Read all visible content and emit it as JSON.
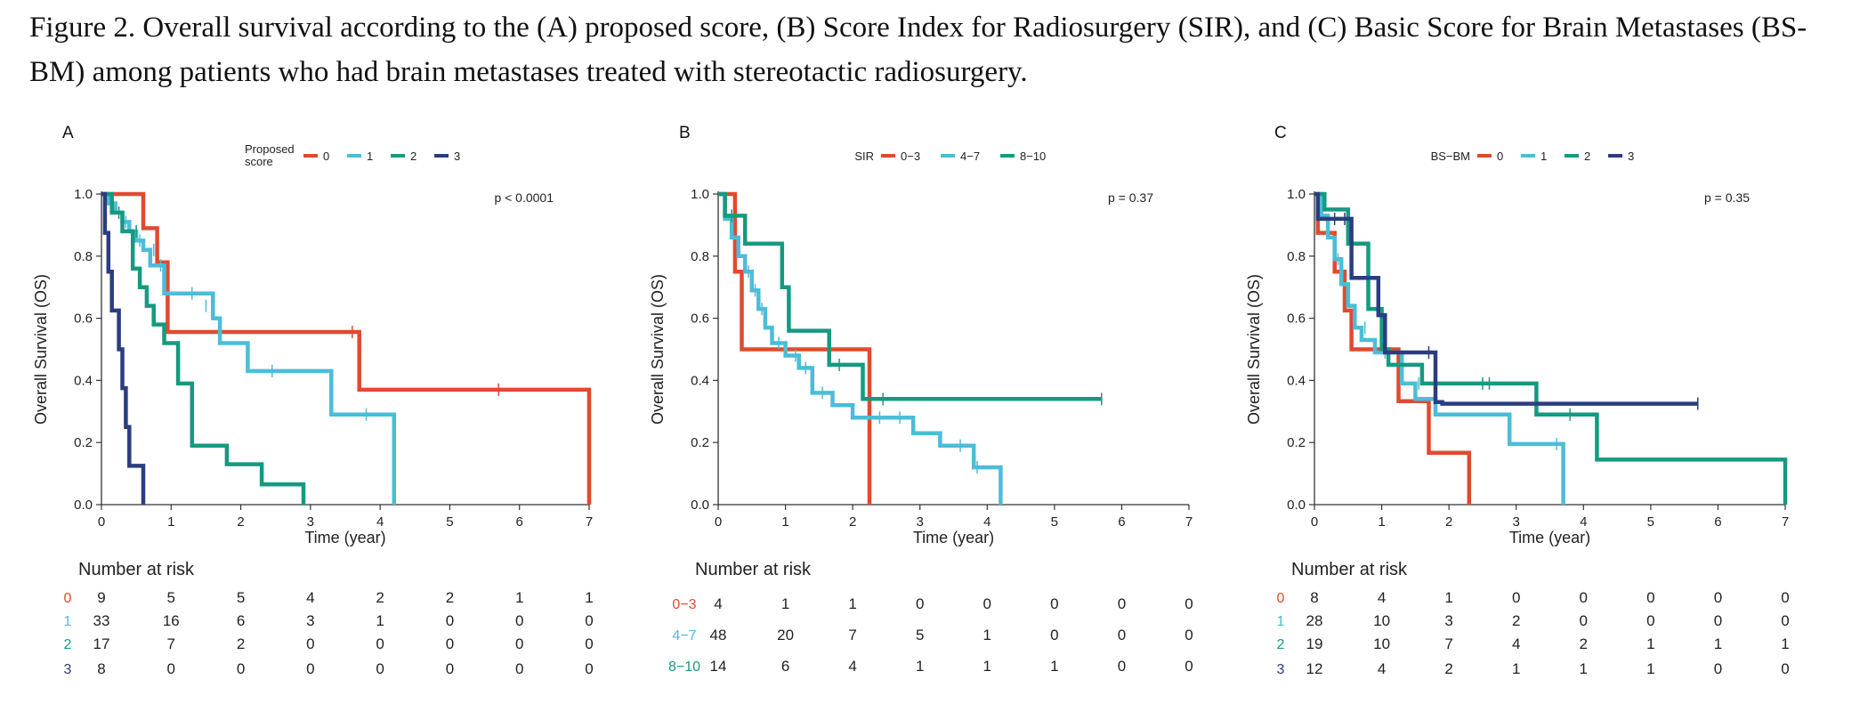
{
  "caption": "Figure 2. Overall survival according to the (A) proposed score, (B) Score Index for Radiosurgery (SIR), and (C) Basic Score for Brain Metastases (BS-BM) among patients who had brain metastases treated with stereotactic radiosurgery.",
  "chart_data": [
    {
      "type": "line",
      "panel": "A",
      "legend_title": "Proposed score",
      "p_value": "p < 0.0001",
      "xlabel": "Time (year)",
      "ylabel": "Overall Survival (OS)",
      "xlim": [
        0,
        7
      ],
      "ylim": [
        0,
        1
      ],
      "xticks": [
        "0",
        "1",
        "2",
        "3",
        "4",
        "5",
        "6",
        "7"
      ],
      "yticks": [
        "0.0",
        "0.2",
        "0.4",
        "0.6",
        "0.8",
        "1.0"
      ],
      "legend_position": "top",
      "risk_table_title": "Number at risk",
      "series": [
        {
          "name": "0",
          "color": "#e04a2f",
          "x": [
            0,
            0.6,
            0.6,
            0.8,
            0.8,
            0.95,
            0.95,
            3.7,
            3.7,
            7.0,
            7.0
          ],
          "y": [
            1.0,
            1.0,
            0.89,
            0.89,
            0.78,
            0.78,
            0.556,
            0.556,
            0.37,
            0.37,
            0.0
          ],
          "censor_x": [
            3.6,
            5.7
          ],
          "censor_y": [
            0.556,
            0.37
          ],
          "at_risk": [
            9,
            5,
            5,
            4,
            2,
            2,
            1,
            1
          ]
        },
        {
          "name": "1",
          "color": "#4bbdd8",
          "x": [
            0,
            0.1,
            0.1,
            0.2,
            0.2,
            0.3,
            0.3,
            0.4,
            0.4,
            0.5,
            0.5,
            0.6,
            0.6,
            0.7,
            0.7,
            0.9,
            0.9,
            1.6,
            1.6,
            1.7,
            1.7,
            2.1,
            2.1,
            3.3,
            3.3,
            4.2,
            4.2
          ],
          "y": [
            1.0,
            1.0,
            0.97,
            0.97,
            0.94,
            0.94,
            0.91,
            0.91,
            0.88,
            0.88,
            0.85,
            0.85,
            0.82,
            0.82,
            0.77,
            0.77,
            0.68,
            0.68,
            0.6,
            0.6,
            0.52,
            0.52,
            0.43,
            0.43,
            0.29,
            0.29,
            0.0
          ],
          "censor_x": [
            0.35,
            0.55,
            0.75,
            0.85,
            1.3,
            1.5,
            2.45,
            3.8
          ],
          "censor_y": [
            0.91,
            0.85,
            0.82,
            0.77,
            0.68,
            0.64,
            0.43,
            0.29
          ],
          "at_risk": [
            33,
            16,
            6,
            3,
            1,
            0,
            0,
            0
          ]
        },
        {
          "name": "2",
          "color": "#159a80",
          "x": [
            0,
            0.15,
            0.15,
            0.3,
            0.3,
            0.45,
            0.45,
            0.55,
            0.55,
            0.65,
            0.65,
            0.75,
            0.75,
            0.9,
            0.9,
            1.1,
            1.1,
            1.3,
            1.3,
            1.8,
            1.8,
            2.3,
            2.3,
            2.9,
            2.9
          ],
          "y": [
            1.0,
            1.0,
            0.94,
            0.94,
            0.88,
            0.88,
            0.76,
            0.76,
            0.7,
            0.7,
            0.64,
            0.64,
            0.58,
            0.58,
            0.52,
            0.52,
            0.39,
            0.39,
            0.19,
            0.19,
            0.13,
            0.13,
            0.065,
            0.065,
            0.0
          ],
          "censor_x": [
            0.25,
            0.5
          ],
          "censor_y": [
            0.94,
            0.88
          ],
          "at_risk": [
            17,
            7,
            2,
            0,
            0,
            0,
            0,
            0
          ]
        },
        {
          "name": "3",
          "color": "#2b3d80",
          "x": [
            0,
            0.05,
            0.05,
            0.1,
            0.1,
            0.15,
            0.15,
            0.25,
            0.25,
            0.3,
            0.3,
            0.35,
            0.35,
            0.4,
            0.4,
            0.6,
            0.6
          ],
          "y": [
            1.0,
            1.0,
            0.875,
            0.875,
            0.75,
            0.75,
            0.625,
            0.625,
            0.5,
            0.5,
            0.375,
            0.375,
            0.25,
            0.25,
            0.125,
            0.125,
            0.0
          ],
          "censor_x": [],
          "censor_y": [],
          "at_risk": [
            8,
            0,
            0,
            0,
            0,
            0,
            0,
            0
          ]
        }
      ]
    },
    {
      "type": "line",
      "panel": "B",
      "legend_title": "SIR",
      "p_value": "p = 0.37",
      "xlabel": "Time (year)",
      "ylabel": "Overall Survival (OS)",
      "xlim": [
        0,
        7
      ],
      "ylim": [
        0,
        1
      ],
      "xticks": [
        "0",
        "1",
        "2",
        "3",
        "4",
        "5",
        "6",
        "7"
      ],
      "yticks": [
        "0.0",
        "0.2",
        "0.4",
        "0.6",
        "0.8",
        "1.0"
      ],
      "legend_position": "top",
      "risk_table_title": "Number at risk",
      "series": [
        {
          "name": "0−3",
          "color": "#e04a2f",
          "x": [
            0,
            0.25,
            0.25,
            0.35,
            0.35,
            2.25,
            2.25
          ],
          "y": [
            1.0,
            1.0,
            0.75,
            0.75,
            0.5,
            0.5,
            0.0
          ],
          "censor_x": [],
          "censor_y": [],
          "at_risk": [
            4,
            1,
            1,
            0,
            0,
            0,
            0,
            0
          ]
        },
        {
          "name": "4−7",
          "color": "#4bbdd8",
          "x": [
            0,
            0.1,
            0.1,
            0.2,
            0.2,
            0.3,
            0.3,
            0.4,
            0.4,
            0.5,
            0.5,
            0.6,
            0.6,
            0.7,
            0.7,
            0.8,
            0.8,
            1.0,
            1.0,
            1.2,
            1.2,
            1.4,
            1.4,
            1.7,
            1.7,
            2.0,
            2.0,
            2.4,
            2.4,
            2.9,
            2.9,
            3.3,
            3.3,
            3.8,
            3.8,
            4.2,
            4.2
          ],
          "y": [
            1.0,
            1.0,
            0.92,
            0.92,
            0.86,
            0.86,
            0.8,
            0.8,
            0.75,
            0.75,
            0.69,
            0.69,
            0.63,
            0.63,
            0.57,
            0.57,
            0.52,
            0.52,
            0.48,
            0.48,
            0.44,
            0.44,
            0.36,
            0.36,
            0.32,
            0.32,
            0.28,
            0.28,
            0.28,
            0.28,
            0.23,
            0.23,
            0.19,
            0.19,
            0.12,
            0.12,
            0.0
          ],
          "censor_x": [
            0.45,
            0.55,
            0.65,
            0.9,
            1.15,
            1.3,
            1.55,
            2.4,
            2.7,
            3.6,
            3.85
          ],
          "censor_y": [
            0.75,
            0.69,
            0.63,
            0.52,
            0.48,
            0.44,
            0.36,
            0.28,
            0.28,
            0.19,
            0.12
          ],
          "at_risk": [
            48,
            20,
            7,
            5,
            1,
            0,
            0,
            0
          ]
        },
        {
          "name": "8−10",
          "color": "#159a80",
          "x": [
            0,
            0.1,
            0.1,
            0.4,
            0.4,
            0.95,
            0.95,
            1.05,
            1.05,
            1.65,
            1.65,
            2.15,
            2.15,
            5.7,
            5.7
          ],
          "y": [
            1.0,
            1.0,
            0.93,
            0.93,
            0.84,
            0.84,
            0.7,
            0.7,
            0.56,
            0.56,
            0.45,
            0.45,
            0.34,
            0.34,
            0.34
          ],
          "censor_x": [
            0.2,
            1.8,
            2.45,
            5.7
          ],
          "censor_y": [
            0.93,
            0.45,
            0.34,
            0.34
          ],
          "at_risk": [
            14,
            6,
            4,
            1,
            1,
            1,
            0,
            0
          ]
        }
      ]
    },
    {
      "type": "line",
      "panel": "C",
      "legend_title": "BS−BM",
      "p_value": "p = 0.35",
      "xlabel": "Time (year)",
      "ylabel": "Overall Survival (OS)",
      "xlim": [
        0,
        7
      ],
      "ylim": [
        0,
        1
      ],
      "xticks": [
        "0",
        "1",
        "2",
        "3",
        "4",
        "5",
        "6",
        "7"
      ],
      "yticks": [
        "0.0",
        "0.2",
        "0.4",
        "0.6",
        "0.8",
        "1.0"
      ],
      "legend_position": "top",
      "risk_table_title": "Number at risk",
      "series": [
        {
          "name": "0",
          "color": "#e04a2f",
          "x": [
            0,
            0.05,
            0.05,
            0.3,
            0.3,
            0.45,
            0.45,
            0.55,
            0.55,
            1.0,
            1.0,
            1.25,
            1.25,
            1.7,
            1.7,
            2.3,
            2.3
          ],
          "y": [
            1.0,
            1.0,
            0.875,
            0.875,
            0.75,
            0.75,
            0.625,
            0.625,
            0.5,
            0.5,
            0.5,
            0.5,
            0.333,
            0.333,
            0.167,
            0.167,
            0.0
          ],
          "censor_x": [],
          "censor_y": [],
          "at_risk": [
            8,
            4,
            1,
            0,
            0,
            0,
            0,
            0
          ]
        },
        {
          "name": "1",
          "color": "#4bbdd8",
          "x": [
            0,
            0.1,
            0.1,
            0.2,
            0.2,
            0.3,
            0.3,
            0.4,
            0.4,
            0.5,
            0.5,
            0.6,
            0.6,
            0.7,
            0.7,
            0.9,
            0.9,
            1.3,
            1.3,
            1.5,
            1.5,
            1.8,
            1.8,
            2.9,
            2.9,
            3.7,
            3.7
          ],
          "y": [
            1.0,
            1.0,
            0.93,
            0.93,
            0.86,
            0.86,
            0.79,
            0.79,
            0.71,
            0.71,
            0.64,
            0.64,
            0.57,
            0.57,
            0.53,
            0.53,
            0.49,
            0.49,
            0.39,
            0.39,
            0.34,
            0.34,
            0.29,
            0.29,
            0.195,
            0.195,
            0.0
          ],
          "censor_x": [
            0.35,
            0.75,
            1.05,
            1.55,
            3.6
          ],
          "censor_y": [
            0.79,
            0.57,
            0.49,
            0.39,
            0.195
          ],
          "at_risk": [
            28,
            10,
            3,
            2,
            0,
            0,
            0,
            0
          ]
        },
        {
          "name": "2",
          "color": "#159a80",
          "x": [
            0,
            0.15,
            0.15,
            0.5,
            0.5,
            0.8,
            0.8,
            1.0,
            1.0,
            1.1,
            1.1,
            1.6,
            1.6,
            2.1,
            2.1,
            3.3,
            3.3,
            4.2,
            4.2,
            7.0,
            7.0
          ],
          "y": [
            1.0,
            1.0,
            0.95,
            0.95,
            0.84,
            0.84,
            0.63,
            0.63,
            0.5,
            0.5,
            0.45,
            0.45,
            0.39,
            0.39,
            0.39,
            0.39,
            0.29,
            0.29,
            0.145,
            0.145,
            0.0
          ],
          "censor_x": [
            2.5,
            2.6,
            3.8
          ],
          "censor_y": [
            0.39,
            0.39,
            0.29
          ],
          "at_risk": [
            19,
            10,
            7,
            4,
            2,
            1,
            1,
            1
          ]
        },
        {
          "name": "3",
          "color": "#2b3d80",
          "x": [
            0,
            0.05,
            0.05,
            0.55,
            0.55,
            0.95,
            0.95,
            1.05,
            1.05,
            1.1,
            1.1,
            1.8,
            1.8,
            1.9,
            1.9,
            5.7,
            5.7
          ],
          "y": [
            1.0,
            1.0,
            0.92,
            0.92,
            0.73,
            0.73,
            0.61,
            0.61,
            0.49,
            0.49,
            0.49,
            0.49,
            0.33,
            0.33,
            0.325,
            0.325,
            0.325
          ],
          "censor_x": [
            0.3,
            0.45,
            1.7,
            5.7
          ],
          "censor_y": [
            0.92,
            0.92,
            0.49,
            0.325
          ],
          "at_risk": [
            12,
            4,
            2,
            1,
            1,
            1,
            0,
            0
          ]
        }
      ]
    }
  ]
}
